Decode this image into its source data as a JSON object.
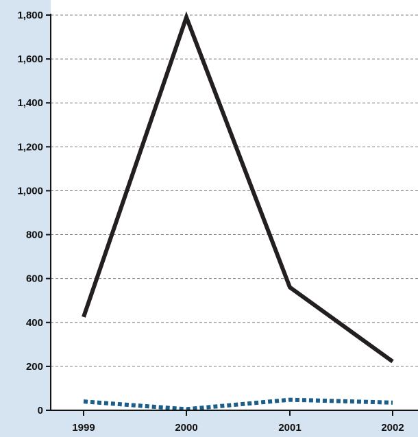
{
  "chart_data": {
    "type": "line",
    "categories": [
      "1999",
      "2000",
      "2001",
      "2002"
    ],
    "series": [
      {
        "values": [
          425,
          1790,
          560,
          222
        ],
        "color": "#231f20",
        "style": "solid"
      },
      {
        "values": [
          40,
          5,
          48,
          35
        ],
        "color": "#1b5e8c",
        "style": "dotted"
      }
    ],
    "xlabel": "",
    "ylabel": "",
    "ylim": [
      0,
      1800
    ],
    "yticks": [
      0,
      200,
      400,
      600,
      800,
      1000,
      1200,
      1400,
      1600,
      1800
    ],
    "ytick_labels": [
      "0",
      "200",
      "400",
      "600",
      "800",
      "1,000",
      "1,200",
      "1,400",
      "1,600",
      "1,800"
    ],
    "grid": true,
    "colors": {
      "page_background": "#d6e3f1",
      "plot_background": "#ffffff",
      "grid": "#7f7f7f",
      "axis": "#111111"
    }
  }
}
